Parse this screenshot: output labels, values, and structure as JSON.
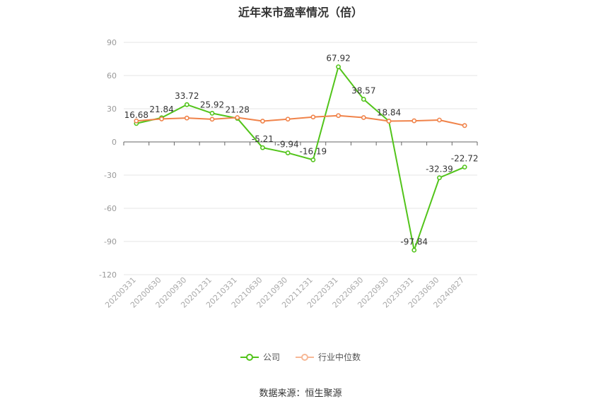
{
  "chart_data": {
    "type": "line",
    "title": "近年来市盈率情况（倍）",
    "categories": [
      "20200331",
      "20200630",
      "20200930",
      "20201231",
      "20210331",
      "20210630",
      "20210930",
      "20211231",
      "20220331",
      "20220630",
      "20220930",
      "20230331",
      "20230630",
      "20240827"
    ],
    "ylim": [
      -120,
      90
    ],
    "yticks": [
      90,
      60,
      30,
      0,
      -30,
      -60,
      -90,
      -120
    ],
    "grid": true,
    "legend_position": "bottom",
    "series": [
      {
        "name": "公司",
        "color": "#52c41a",
        "values": [
          16.68,
          21.84,
          33.72,
          25.92,
          21.28,
          -5.21,
          -9.94,
          -16.19,
          67.92,
          38.57,
          18.84,
          -97.84,
          -32.39,
          -22.72
        ],
        "labels": [
          "16.68",
          "21.84",
          "33.72",
          "25.92",
          "21.28",
          "-5.21",
          "-9.94",
          "-16.19",
          "67.92",
          "38.57",
          "18.84",
          "-97.84",
          "-32.39",
          "-22.72"
        ]
      },
      {
        "name": "行业中位数",
        "color": "#f0834a",
        "values": [
          19.0,
          20.8,
          21.6,
          20.5,
          22.0,
          18.8,
          20.6,
          22.5,
          23.8,
          22.0,
          18.8,
          19.1,
          19.8,
          14.8
        ]
      }
    ],
    "source": "数据来源：恒生聚源"
  }
}
